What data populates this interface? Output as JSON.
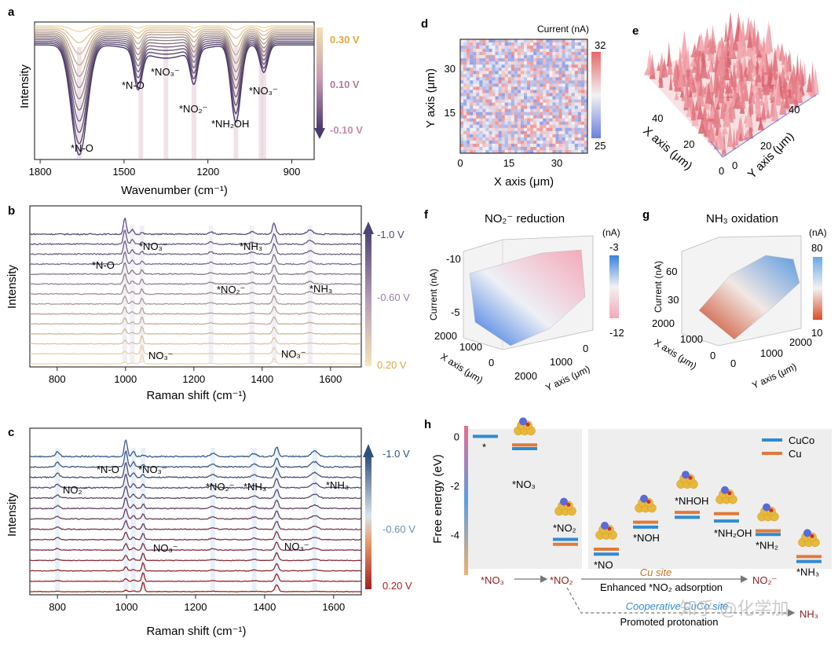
{
  "watermark": "知乎 @化学加",
  "panels": {
    "a": {
      "letter": "a"
    },
    "b": {
      "letter": "b"
    },
    "c": {
      "letter": "c"
    },
    "d": {
      "letter": "d"
    },
    "e": {
      "letter": "e"
    },
    "f": {
      "letter": "f"
    },
    "g": {
      "letter": "g"
    },
    "h": {
      "letter": "h"
    }
  },
  "chart_data": [
    {
      "id": "a",
      "type": "line",
      "title": "",
      "xlabel": "Wavenumber (cm⁻¹)",
      "ylabel": "Intensity",
      "xlim": [
        1820,
        820
      ],
      "xticks": [
        "1800",
        "1500",
        "1200",
        "900"
      ],
      "xtick_values": [
        1800,
        1500,
        1200,
        900
      ],
      "n_series": 12,
      "potential_labels": [
        "0.30 V",
        "0.10 V",
        "-0.10 V"
      ],
      "annotations": [
        "*N-O",
        "*N-O",
        "*NO₃⁻",
        "*NO₂⁻",
        "*NH₂OH",
        "*NO₃⁻"
      ],
      "bands": [
        1660,
        1440,
        1350,
        1250,
        1100,
        1010,
        1000
      ],
      "colors": [
        "#f0d9a6",
        "#4a3a6e"
      ]
    },
    {
      "id": "b",
      "type": "line",
      "xlabel": "Raman shift (cm⁻¹)",
      "ylabel": "Intensity",
      "xlim": [
        720,
        1690
      ],
      "xticks": [
        "800",
        "1000",
        "1200",
        "1400",
        "1600"
      ],
      "xtick_values": [
        800,
        1000,
        1200,
        1400,
        1600
      ],
      "n_series": 14,
      "potential_labels": [
        "-1.0 V",
        "-0.60 V",
        "0.20 V"
      ],
      "annotations": [
        "*N-O",
        "*NO₃⁻",
        "*NH₃",
        "*NO₂⁻",
        "*NH₃",
        "NO₃⁻",
        "NO₃⁻"
      ],
      "peaks": [
        998,
        1020,
        1048,
        1250,
        1370,
        1435,
        1540
      ],
      "colors": [
        "#f2d9a8",
        "#5a4f7e"
      ]
    },
    {
      "id": "c",
      "type": "line",
      "xlabel": "Raman shift (cm⁻¹)",
      "ylabel": "Intensity",
      "xlim": [
        720,
        1680
      ],
      "xticks": [
        "800",
        "1000",
        "1200",
        "1400",
        "1600"
      ],
      "xtick_values": [
        800,
        1000,
        1200,
        1400,
        1600
      ],
      "n_series": 14,
      "potential_labels": [
        "-1.0 V",
        "-0.60 V",
        "0.20 V"
      ],
      "annotations": [
        "*N-O",
        "*NO₃⁻",
        "NO₂⁻",
        "*NO₂⁻",
        "*NH₃",
        "*NH₃",
        "NO₃⁻",
        "NO₃⁻"
      ],
      "peaks": [
        800,
        998,
        1020,
        1048,
        1250,
        1370,
        1435,
        1545
      ],
      "colors": [
        "#a02020",
        "#3a5a8a"
      ]
    },
    {
      "id": "d",
      "type": "heatmap",
      "xlabel": "X axis (μm)",
      "ylabel": "Y axis (μm)",
      "xticks": [
        "0",
        "15",
        "30"
      ],
      "yticks": [
        "30",
        "15"
      ],
      "colorbar_label": "Current (nA)",
      "colorbar_range": [
        "32",
        "25"
      ],
      "range_um": [
        0,
        38
      ]
    },
    {
      "id": "e",
      "type": "surface",
      "xlabel": "X axis (μm)",
      "ylabel": "Y axis (μm)",
      "xticks": [
        "40",
        "20",
        "0"
      ],
      "yticks": [
        "0",
        "20",
        "40"
      ]
    },
    {
      "id": "f",
      "type": "surface",
      "title": "NO₂⁻ reduction",
      "zlabel": "Current (nA)",
      "xlabel": "X axis (μm)",
      "ylabel": "Y axis (μm)",
      "zticks": [
        "-10",
        "-5"
      ],
      "xticks": [
        "2000",
        "1000",
        "0"
      ],
      "yticks": [
        "2000",
        "1000",
        "0"
      ],
      "colorbar_unit": "(nA)",
      "colorbar_range": [
        "-3",
        "-12"
      ]
    },
    {
      "id": "g",
      "type": "surface",
      "title": "NH₃ oxidation",
      "zlabel": "Current (nA)",
      "xlabel": "X axis (μm)",
      "ylabel": "Y axis (μm)",
      "zticks": [
        "60",
        "30"
      ],
      "xticks": [
        "2000",
        "1000",
        "0"
      ],
      "yticks": [
        "0",
        "1000",
        "2000"
      ],
      "colorbar_unit": "(nA)",
      "colorbar_range": [
        "80",
        "10"
      ]
    },
    {
      "id": "h",
      "type": "energy-diagram",
      "ylabel": "Free energy (eV)",
      "ylim": [
        -5.4,
        0.3
      ],
      "yticks": [
        "0",
        "-2",
        "-4"
      ],
      "ytick_values": [
        0,
        -2,
        -4
      ],
      "legend": [
        {
          "name": "CuCo",
          "color": "#2f8bd0"
        },
        {
          "name": "Cu",
          "color": "#e07a3a"
        }
      ],
      "states": [
        {
          "label": "*",
          "CuCo": 0.0,
          "Cu": null
        },
        {
          "label": "*NO₃",
          "CuCo": -0.5,
          "Cu": -0.35
        },
        {
          "label": "*NO₂",
          "CuCo": -4.2,
          "Cu": -4.4
        },
        {
          "label": "*NO",
          "CuCo": -4.8,
          "Cu": -4.6
        },
        {
          "label": "*NOH",
          "CuCo": -3.7,
          "Cu": -3.5
        },
        {
          "label": "*NHOH",
          "CuCo": -3.3,
          "Cu": -3.1
        },
        {
          "label": "*NH₂OH",
          "CuCo": -3.45,
          "Cu": -3.15
        },
        {
          "label": "*NH₂",
          "CuCo": -4.0,
          "Cu": -3.85
        },
        {
          "label": "*NH₃",
          "CuCo": -5.1,
          "Cu": -4.9
        }
      ],
      "pathway": {
        "start": "*NO₃",
        "mid": "*NO₂",
        "cu_site": "Cu site",
        "cu_text": "Enhanced *NO₂ adsorption",
        "cu_product": "NO₂⁻",
        "cuco_site": "Cooperative CuCo site",
        "cuco_text": "Promoted protonation",
        "cuco_product": "NH₃"
      }
    }
  ]
}
